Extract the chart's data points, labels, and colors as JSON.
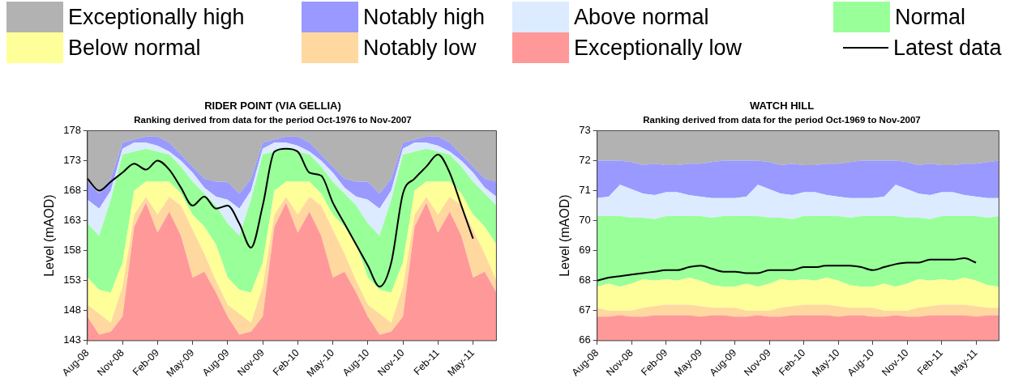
{
  "chart_data": [
    {
      "type": "area",
      "title": "RIDER POINT (VIA GELLIA)",
      "subtitle": "Ranking derived from data for the period Oct-1976 to Nov-2007",
      "ylabel": "Level (mAOD)",
      "legend": "top",
      "categories": [
        "Aug-08",
        null,
        null,
        "Nov-08",
        null,
        null,
        "Feb-09",
        null,
        null,
        "May-09",
        null,
        null,
        "Aug-09",
        null,
        null,
        "Nov-09",
        null,
        null,
        "Feb-10",
        null,
        null,
        "May-10",
        null,
        null,
        "Aug-10",
        null,
        null,
        "Nov-10",
        null,
        null,
        "Feb-11",
        null,
        null,
        "May-11",
        null,
        null
      ],
      "ylim": [
        143,
        178
      ],
      "yticks": [
        143,
        148,
        153,
        158,
        163,
        168,
        173,
        178
      ],
      "series": [
        {
          "name": "Exceptionally high",
          "color": "#b2b2b2",
          "values": [
            178,
            178,
            178,
            178,
            178,
            178,
            178,
            178,
            178,
            178,
            178,
            178,
            178,
            178,
            178,
            178,
            178,
            178,
            178,
            178,
            178,
            178,
            178,
            178,
            178,
            178,
            178,
            178,
            178,
            178,
            178,
            178,
            178,
            178,
            178,
            178
          ]
        },
        {
          "name": "Notably high",
          "color": "#9999ff",
          "values": [
            169.5,
            167.5,
            170,
            176,
            176.5,
            177,
            177,
            176,
            174,
            172,
            170,
            169.5,
            169.5,
            167.5,
            170,
            176,
            176.5,
            177,
            177,
            176,
            174,
            172,
            170,
            169.5,
            169.5,
            167.5,
            170,
            176,
            176.5,
            177,
            177,
            176,
            174,
            172,
            170,
            169.5
          ]
        },
        {
          "name": "Above normal",
          "color": "#dcebff",
          "values": [
            166.5,
            165,
            168,
            175,
            176,
            176,
            175.5,
            174.5,
            173,
            171,
            168.5,
            167,
            166.5,
            165,
            168,
            175,
            176,
            176,
            175.5,
            174.5,
            173,
            171,
            168.5,
            167,
            166.5,
            165,
            168,
            175,
            176,
            176,
            175.5,
            174.5,
            173,
            171,
            168.5,
            167
          ]
        },
        {
          "name": "Normal",
          "color": "#99ff99",
          "values": [
            162.5,
            160.5,
            166.5,
            174,
            174.5,
            175,
            174.5,
            174,
            172,
            169.5,
            167.5,
            165.5,
            162.5,
            160.5,
            166.5,
            174,
            174.5,
            175,
            174.5,
            174,
            172,
            169.5,
            167.5,
            165.5,
            162.5,
            160.5,
            166.5,
            174,
            174.5,
            175,
            174.5,
            174,
            172,
            169.5,
            167.5,
            165.5
          ]
        },
        {
          "name": "Below normal",
          "color": "#ffff99",
          "values": [
            153.5,
            151.5,
            151,
            156,
            168,
            169.5,
            169.5,
            169.5,
            167.5,
            164,
            162,
            159,
            153.5,
            151.5,
            151,
            156,
            168,
            169.5,
            169.5,
            169.5,
            167.5,
            164,
            162,
            159,
            153.5,
            151.5,
            151,
            156,
            168,
            169.5,
            169.5,
            169.5,
            167.5,
            164,
            162,
            159
          ]
        },
        {
          "name": "Notably low",
          "color": "#ffd8a0",
          "values": [
            149,
            147.5,
            146,
            152,
            164,
            167,
            164,
            167,
            165.5,
            161.5,
            157.5,
            153,
            149,
            147.5,
            146,
            152,
            164,
            167,
            164,
            167,
            165.5,
            161.5,
            157.5,
            153,
            149,
            147.5,
            146,
            152,
            164,
            167,
            164,
            167,
            165.5,
            161.5,
            157.5,
            153
          ]
        },
        {
          "name": "Exceptionally low",
          "color": "#ff9999",
          "values": [
            147,
            144,
            144.5,
            147,
            162,
            166,
            161,
            164.5,
            160.5,
            153.5,
            154.5,
            151,
            147,
            144,
            144.5,
            147,
            162,
            166,
            161,
            164.5,
            160.5,
            153.5,
            154.5,
            151,
            147,
            144,
            144.5,
            147,
            162,
            166,
            161,
            164.5,
            160.5,
            153.5,
            154.5,
            151
          ]
        },
        {
          "name": "Latest data",
          "type": "line",
          "color": "#000000",
          "values": [
            170,
            168,
            169.5,
            171,
            172.5,
            171.5,
            173,
            171.5,
            168.5,
            165.5,
            167,
            165,
            165.5,
            162.5,
            158.5,
            165.5,
            174.5,
            175,
            174.5,
            171,
            170.5,
            166,
            162.5,
            159,
            155.5,
            152,
            156,
            167.5,
            170,
            172,
            174,
            171,
            165.5,
            160,
            null,
            null
          ]
        }
      ]
    },
    {
      "type": "area",
      "title": "WATCH HILL",
      "subtitle": "Ranking derived from data for the period Oct-1969 to Nov-2007",
      "ylabel": "Level (mAOD)",
      "categories": [
        "Aug-08",
        null,
        null,
        "Nov-08",
        null,
        null,
        "Feb-09",
        null,
        null,
        "May-09",
        null,
        null,
        "Aug-09",
        null,
        null,
        "Nov-09",
        null,
        null,
        "Feb-10",
        null,
        null,
        "May-10",
        null,
        null,
        "Aug-10",
        null,
        null,
        "Nov-10",
        null,
        null,
        "Feb-11",
        null,
        null,
        "May-11",
        null,
        null
      ],
      "ylim": [
        66,
        73
      ],
      "yticks": [
        66,
        67,
        68,
        69,
        70,
        71,
        72,
        73
      ],
      "series": [
        {
          "color": "#b2b2b2",
          "values": [
            73,
            73,
            73,
            73,
            73,
            73,
            73,
            73,
            73,
            73,
            73,
            73,
            73,
            73,
            73,
            73,
            73,
            73,
            73,
            73,
            73,
            73,
            73,
            73,
            73,
            73,
            73,
            73,
            73,
            73,
            73,
            73,
            73,
            73,
            73,
            73
          ]
        },
        {
          "color": "#9999ff",
          "values": [
            72,
            72,
            72,
            71.95,
            71.85,
            71.9,
            71.85,
            71.85,
            71.9,
            71.9,
            71.95,
            72,
            72,
            72,
            72,
            71.95,
            71.85,
            71.9,
            71.85,
            71.85,
            71.9,
            71.9,
            71.95,
            72,
            72,
            72,
            72,
            71.95,
            71.85,
            71.9,
            71.85,
            71.85,
            71.9,
            71.9,
            71.95,
            72
          ]
        },
        {
          "color": "#dcebff",
          "values": [
            70.75,
            70.8,
            71.2,
            71.05,
            70.9,
            70.85,
            70.95,
            70.95,
            70.85,
            70.8,
            70.75,
            70.75,
            70.75,
            70.8,
            71.2,
            71.05,
            70.9,
            70.85,
            70.95,
            70.95,
            70.85,
            70.8,
            70.75,
            70.75,
            70.75,
            70.8,
            71.2,
            71.05,
            70.9,
            70.85,
            70.95,
            70.95,
            70.85,
            70.8,
            70.75,
            70.75
          ]
        },
        {
          "color": "#99ff99",
          "values": [
            70.15,
            70.15,
            70.15,
            70.1,
            70.1,
            70.05,
            70.15,
            70.15,
            70.15,
            70.15,
            70.1,
            70.15,
            70.15,
            70.15,
            70.15,
            70.1,
            70.1,
            70.05,
            70.15,
            70.15,
            70.15,
            70.15,
            70.1,
            70.15,
            70.15,
            70.15,
            70.15,
            70.1,
            70.1,
            70.05,
            70.15,
            70.15,
            70.15,
            70.15,
            70.1,
            70.15
          ]
        },
        {
          "color": "#ffff99",
          "values": [
            67.8,
            67.9,
            67.8,
            67.9,
            68.05,
            68,
            68.05,
            68,
            68.1,
            68,
            67.85,
            67.8,
            67.8,
            67.9,
            67.8,
            67.9,
            68.05,
            68,
            68.05,
            68,
            68.1,
            68,
            67.85,
            67.8,
            67.8,
            67.9,
            67.8,
            67.9,
            68.05,
            68,
            68.05,
            68,
            68.1,
            68,
            67.85,
            67.8
          ]
        },
        {
          "color": "#ffd8a0",
          "values": [
            67.1,
            67,
            67,
            67,
            67.1,
            67.15,
            67.2,
            67.2,
            67.2,
            67.15,
            67.1,
            67.1,
            67.1,
            67,
            67,
            67,
            67.1,
            67.15,
            67.2,
            67.2,
            67.2,
            67.15,
            67.1,
            67.1,
            67.1,
            67,
            67,
            67,
            67.1,
            67.15,
            67.2,
            67.2,
            67.2,
            67.15,
            67.1,
            67.1
          ]
        },
        {
          "color": "#ff9999",
          "values": [
            66.8,
            66.8,
            66.85,
            66.8,
            66.8,
            66.85,
            66.85,
            66.85,
            66.85,
            66.8,
            66.85,
            66.85,
            66.8,
            66.8,
            66.85,
            66.8,
            66.8,
            66.85,
            66.85,
            66.85,
            66.85,
            66.8,
            66.85,
            66.85,
            66.8,
            66.8,
            66.85,
            66.8,
            66.8,
            66.85,
            66.85,
            66.85,
            66.85,
            66.8,
            66.85,
            66.85
          ]
        },
        {
          "type": "line",
          "color": "#000000",
          "values": [
            68,
            68.1,
            68.15,
            68.2,
            68.25,
            68.3,
            68.35,
            68.35,
            68.45,
            68.5,
            68.4,
            68.3,
            68.3,
            68.25,
            68.25,
            68.35,
            68.35,
            68.35,
            68.45,
            68.45,
            68.5,
            68.5,
            68.5,
            68.45,
            68.35,
            68.45,
            68.55,
            68.6,
            68.6,
            68.7,
            68.7,
            68.7,
            68.75,
            68.6,
            null,
            null
          ]
        }
      ]
    }
  ]
}
